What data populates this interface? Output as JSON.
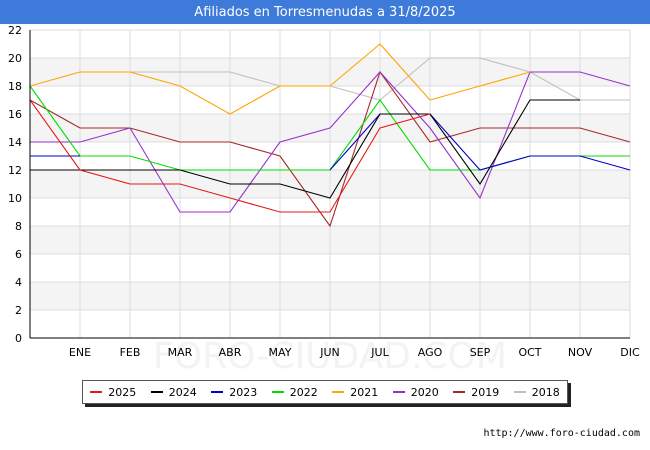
{
  "title": "Afiliados en Torresmenudas a 31/8/2025",
  "watermark": "FORO-CIUDAD.COM",
  "footer_url": "http://www.foro-ciudad.com",
  "chart_data": {
    "type": "line",
    "title": "Afiliados en Torresmenudas a 31/8/2025",
    "x": [
      "",
      "ENE",
      "FEB",
      "MAR",
      "ABR",
      "MAY",
      "JUN",
      "JUL",
      "AGO",
      "SEP",
      "OCT",
      "NOV",
      "DIC"
    ],
    "ylim": [
      0,
      22
    ],
    "yticks": [
      0,
      2,
      4,
      6,
      8,
      10,
      12,
      14,
      16,
      18,
      20,
      22
    ],
    "grid": true,
    "legend_position": "bottom",
    "series": [
      {
        "name": "2025",
        "color": "#e41a1c",
        "values": [
          17,
          12,
          11,
          11,
          10,
          9,
          9,
          15,
          16,
          null,
          null,
          null,
          null
        ]
      },
      {
        "name": "2024",
        "color": "#000000",
        "values": [
          12,
          12,
          12,
          12,
          11,
          11,
          10,
          16,
          16,
          11,
          17,
          17,
          null
        ]
      },
      {
        "name": "2023",
        "color": "#0000cc",
        "values": [
          13,
          13,
          null,
          null,
          null,
          null,
          12,
          16,
          16,
          12,
          13,
          13,
          12
        ]
      },
      {
        "name": "2022",
        "color": "#00dd00",
        "values": [
          18,
          13,
          13,
          12,
          12,
          12,
          12,
          17,
          12,
          12,
          13,
          13,
          13
        ]
      },
      {
        "name": "2021",
        "color": "#ffa500",
        "values": [
          18,
          19,
          19,
          18,
          16,
          18,
          18,
          21,
          17,
          18,
          19,
          null,
          null
        ]
      },
      {
        "name": "2020",
        "color": "#9932cc",
        "values": [
          14,
          14,
          15,
          9,
          9,
          14,
          15,
          19,
          15,
          10,
          19,
          19,
          18
        ]
      },
      {
        "name": "2019",
        "color": "#a52a2a",
        "values": [
          17,
          15,
          15,
          14,
          14,
          13,
          8,
          19,
          14,
          15,
          15,
          15,
          14
        ]
      },
      {
        "name": "2018",
        "color": "#c0c0c0",
        "values": [
          null,
          null,
          19,
          19,
          19,
          18,
          18,
          17,
          20,
          20,
          19,
          17,
          17
        ]
      }
    ]
  }
}
